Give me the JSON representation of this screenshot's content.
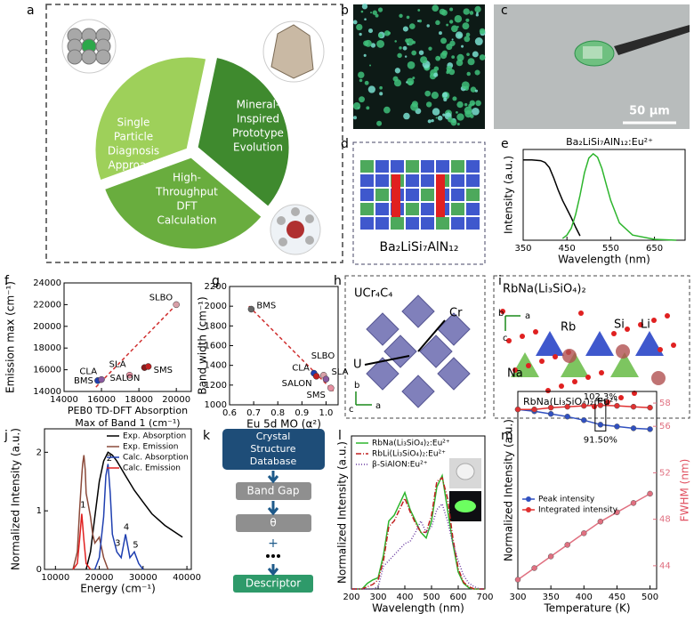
{
  "panel_labels": [
    "a",
    "b",
    "c",
    "d",
    "e",
    "f",
    "g",
    "h",
    "i",
    "j",
    "k",
    "l",
    "m"
  ],
  "panel_a": {
    "segments": [
      [
        "Single",
        "Particle",
        "Diagnosis",
        "Approach"
      ],
      [
        "Mineral-",
        "Inspired",
        "Prototype",
        "Evolution"
      ],
      [
        "High-",
        "Throughput",
        "DFT",
        "Calculation"
      ]
    ]
  },
  "panel_c": {
    "scale_bar": "50 µm"
  },
  "panel_d": {
    "formula": "Ba₂LiSi₇AlN₁₂"
  },
  "panel_i": {
    "nodes": [
      [
        "Crystal",
        "Structure",
        "Database"
      ],
      "Band Gap",
      "θ",
      "+",
      "Descriptor"
    ]
  },
  "panel_j": {
    "title": "UCr₄C₄",
    "labels": [
      "Cr",
      "U"
    ],
    "axes": [
      "b",
      "c",
      "a"
    ]
  },
  "panel_k": {
    "title": "RbNa(Li₃SiO₄)₂",
    "labels": [
      "Rb",
      "Si",
      "Li",
      "Na"
    ],
    "axes": [
      "b",
      "a",
      "c"
    ]
  },
  "chart_data": [
    {
      "type": "line",
      "title": "Ba₂LiSi₇AlN₁₂:Eu²⁺",
      "xlabel": "Wavelength (nm)",
      "ylabel": "Intensity (a.u.)",
      "xlim": [
        350,
        720
      ],
      "xticks": [
        350,
        450,
        550,
        650
      ],
      "ylim": [
        0,
        1.05
      ],
      "x": [
        350,
        370,
        390,
        400,
        410,
        420,
        430,
        440,
        450,
        460,
        470,
        480,
        490,
        500,
        510,
        520,
        530,
        540,
        550,
        570,
        600,
        650,
        700
      ],
      "series": [
        {
          "color": "#000000",
          "values": [
            0.93,
            0.93,
            0.92,
            0.9,
            0.84,
            0.72,
            0.58,
            0.46,
            0.36,
            0.26,
            0.15,
            0.05,
            null,
            null,
            null,
            null,
            null,
            null,
            null,
            null,
            null,
            null,
            null
          ]
        },
        {
          "color": "#2db52d",
          "values": [
            null,
            null,
            null,
            null,
            null,
            null,
            null,
            0.02,
            0.06,
            0.14,
            0.3,
            0.52,
            0.78,
            0.95,
            1.0,
            0.96,
            0.83,
            0.64,
            0.46,
            0.2,
            0.06,
            0.01,
            0
          ]
        }
      ]
    },
    {
      "type": "scatter",
      "xlabel": [
        "PEB0 TD-DFT Absorption",
        "Max of Band 1 (cm⁻¹)"
      ],
      "ylabel": "Emission max (cm⁻¹)",
      "xlim": [
        14000,
        20800
      ],
      "xticks": [
        14000,
        16000,
        18000,
        20000
      ],
      "ylim": [
        14000,
        24000
      ],
      "yticks": [
        14000,
        16000,
        18000,
        20000,
        22000,
        24000
      ],
      "points": [
        {
          "label": "BMS",
          "x": 15800,
          "y": 15000,
          "color": "#1f3fb0"
        },
        {
          "label": "CLA",
          "x": 16000,
          "y": 15100,
          "color": "#8a5aa0"
        },
        {
          "label": "SLA",
          "x": 17500,
          "y": 15500,
          "color": "#e58fa0"
        },
        {
          "label": "SALON",
          "x": 18300,
          "y": 16200,
          "color": "#8b1a1a"
        },
        {
          "label": "SMS",
          "x": 18500,
          "y": 16300,
          "color": "#c02020"
        },
        {
          "label": "SLBO",
          "x": 20000,
          "y": 22000,
          "color": "#d8a0a8"
        }
      ],
      "fit": {
        "color": "#d03030",
        "x": [
          15700,
          20000
        ],
        "values": [
          14400,
          22000
        ]
      }
    },
    {
      "type": "scatter",
      "xlabel": "Eu 5d MO (α²)",
      "ylabel": "Band width (cm⁻¹)",
      "xlim": [
        0.6,
        1.05
      ],
      "xticks": [
        0.6,
        0.7,
        0.8,
        0.9,
        {
          "value": 1,
          "label": "1.0"
        }
      ],
      "ylim": [
        1000,
        2200
      ],
      "yticks": [
        1000,
        1200,
        1400,
        1600,
        1800,
        2000,
        2200
      ],
      "points": [
        {
          "label": "BMS",
          "x": 0.69,
          "y": 1970,
          "color": "#666666"
        },
        {
          "label": "SLBO",
          "x": 0.99,
          "y": 1300,
          "color": "#d8a0a8"
        },
        {
          "label": "CLA",
          "x": 0.95,
          "y": 1320,
          "color": "#1f3fb0"
        },
        {
          "label": "SLA",
          "x": 1.0,
          "y": 1260,
          "color": "#8a5aa0"
        },
        {
          "label": "SALON",
          "x": 0.96,
          "y": 1290,
          "color": "#c02020"
        },
        {
          "label": "SMS",
          "x": 1.02,
          "y": 1170,
          "color": "#e58fa0"
        }
      ],
      "fit": {
        "color": "#d03030",
        "x": [
          0.68,
          1.03
        ],
        "values": [
          2000,
          1140
        ]
      }
    },
    {
      "type": "line",
      "xlabel": "Energy (cm⁻¹)",
      "ylabel": "Normalized Intensity (a.u.)",
      "xlim": [
        7500,
        41000
      ],
      "xticks": [
        10000,
        20000,
        30000,
        40000
      ],
      "ylim": [
        0,
        2.4
      ],
      "yticks": [
        0,
        1,
        2
      ],
      "legend": "upper right",
      "annotations": [
        "1",
        "2",
        "3",
        "4",
        "5"
      ],
      "series": [
        {
          "name": "Exp. Absorption",
          "color": "#000000",
          "x": [
            17000,
            18000,
            19000,
            20000,
            21000,
            22000,
            23000,
            24000,
            26000,
            28000,
            30000,
            32000,
            35000,
            38000,
            39000
          ],
          "values": [
            0,
            0.3,
            0.9,
            1.5,
            1.85,
            2.0,
            1.95,
            1.85,
            1.6,
            1.35,
            1.15,
            0.95,
            0.75,
            0.6,
            0.55
          ]
        },
        {
          "name": "Exp. Emission",
          "color": "#8b4a3a",
          "x": [
            14000,
            15000,
            15500,
            16000,
            16200,
            16500,
            16800,
            17000,
            17500,
            18000,
            18500,
            19000,
            20000,
            21000,
            22000
          ],
          "values": [
            0,
            0.3,
            1.0,
            1.6,
            1.8,
            1.95,
            1.7,
            1.3,
            1.1,
            0.9,
            0.6,
            0.45,
            0.55,
            0.2,
            0
          ]
        },
        {
          "name": "Calc. Absorption",
          "color": "#1f3fb0",
          "x": [
            19000,
            20000,
            21000,
            21500,
            22000,
            22500,
            23000,
            24000,
            25000,
            26000,
            27000,
            28000,
            29000,
            30000
          ],
          "values": [
            0,
            0.2,
            0.9,
            1.6,
            1.8,
            1.3,
            0.6,
            0.3,
            0.2,
            0.6,
            0.2,
            0.3,
            0.1,
            0
          ]
        },
        {
          "name": "Calc. Emission",
          "color": "#e02020",
          "x": [
            14000,
            15000,
            15500,
            16000,
            16500,
            17000,
            18000
          ],
          "values": [
            0,
            0.1,
            0.5,
            0.95,
            0.5,
            0.1,
            0
          ]
        }
      ]
    },
    {
      "type": "line",
      "xlabel": "Wavelength (nm)",
      "ylabel": "Normalized Intensity (a.u.)",
      "xlim": [
        200,
        700
      ],
      "xticks": [
        200,
        300,
        400,
        500,
        600,
        700
      ],
      "ylim": [
        0,
        1.35
      ],
      "legend": "upper left",
      "x": [
        200,
        220,
        240,
        260,
        280,
        300,
        320,
        340,
        360,
        380,
        400,
        420,
        440,
        460,
        480,
        500,
        520,
        540,
        560,
        580,
        600,
        620,
        640,
        660,
        680,
        700
      ],
      "series": [
        {
          "name": "RbNa(Li₃SiO₄)₂:Eu²⁺",
          "color": "#2db52d",
          "dash": "solid",
          "values": [
            0,
            0,
            0,
            0.05,
            0.08,
            0.1,
            0.3,
            0.6,
            0.65,
            0.75,
            0.85,
            0.7,
            0.6,
            0.5,
            0.45,
            0.6,
            0.9,
            1.0,
            0.7,
            0.4,
            0.15,
            0.05,
            0.01,
            0,
            0,
            0
          ]
        },
        {
          "name": "RbLi(Li₃SiO₄)₂:Eu²⁺",
          "color": "#c02020",
          "dash": "dashdot",
          "values": [
            0,
            0,
            0,
            0.02,
            0.04,
            0.08,
            0.25,
            0.55,
            0.6,
            0.7,
            0.8,
            0.68,
            0.58,
            0.5,
            0.5,
            0.65,
            0.95,
            0.98,
            0.8,
            0.45,
            0.18,
            0.06,
            0.02,
            0,
            0,
            0
          ]
        },
        {
          "name": "β-SiAlON:Eu²⁺",
          "color": "#6a3aa0",
          "dash": "dotted",
          "values": [
            0,
            0,
            0,
            0,
            0,
            0.02,
            0.2,
            0.25,
            0.3,
            0.35,
            0.4,
            0.42,
            0.5,
            0.6,
            0.5,
            0.55,
            0.7,
            0.75,
            0.6,
            0.4,
            0.25,
            0.12,
            0.05,
            0.02,
            0,
            0
          ]
        }
      ]
    },
    {
      "type": "line",
      "title": "RbNa(Li₃SiO₄)₂:Eu²⁺",
      "xlabel": "Temperature (K)",
      "ylabel": "Normalized Intensity (a.u.)",
      "y2label": "FWHM (nm)",
      "xlim": [
        300,
        510
      ],
      "xticks": [
        300,
        350,
        400,
        450,
        500
      ],
      "ylim": [
        0,
        1.1
      ],
      "y2lim": [
        42,
        59
      ],
      "y2ticks": [
        44,
        48,
        52,
        56,
        58
      ],
      "legend": "center left",
      "markers": true,
      "annotations": [
        "102.3%",
        "91.50%"
      ],
      "x": [
        300,
        325,
        350,
        375,
        400,
        425,
        450,
        475,
        500
      ],
      "series": [
        {
          "name": "Peak intensity",
          "color": "#3050c0",
          "values": [
            1.0,
            0.99,
            0.975,
            0.96,
            0.94,
            0.915,
            0.905,
            0.895,
            0.89
          ]
        },
        {
          "name": "Integrated intensity",
          "color": "#e03030",
          "values": [
            1.0,
            1.0,
            1.01,
            1.015,
            1.02,
            1.023,
            1.02,
            1.015,
            1.01
          ]
        },
        {
          "color": "#e07080",
          "axis": "y2",
          "values": [
            42.8,
            43.8,
            44.8,
            45.8,
            46.8,
            47.8,
            48.6,
            49.4,
            50.2
          ]
        }
      ]
    }
  ]
}
